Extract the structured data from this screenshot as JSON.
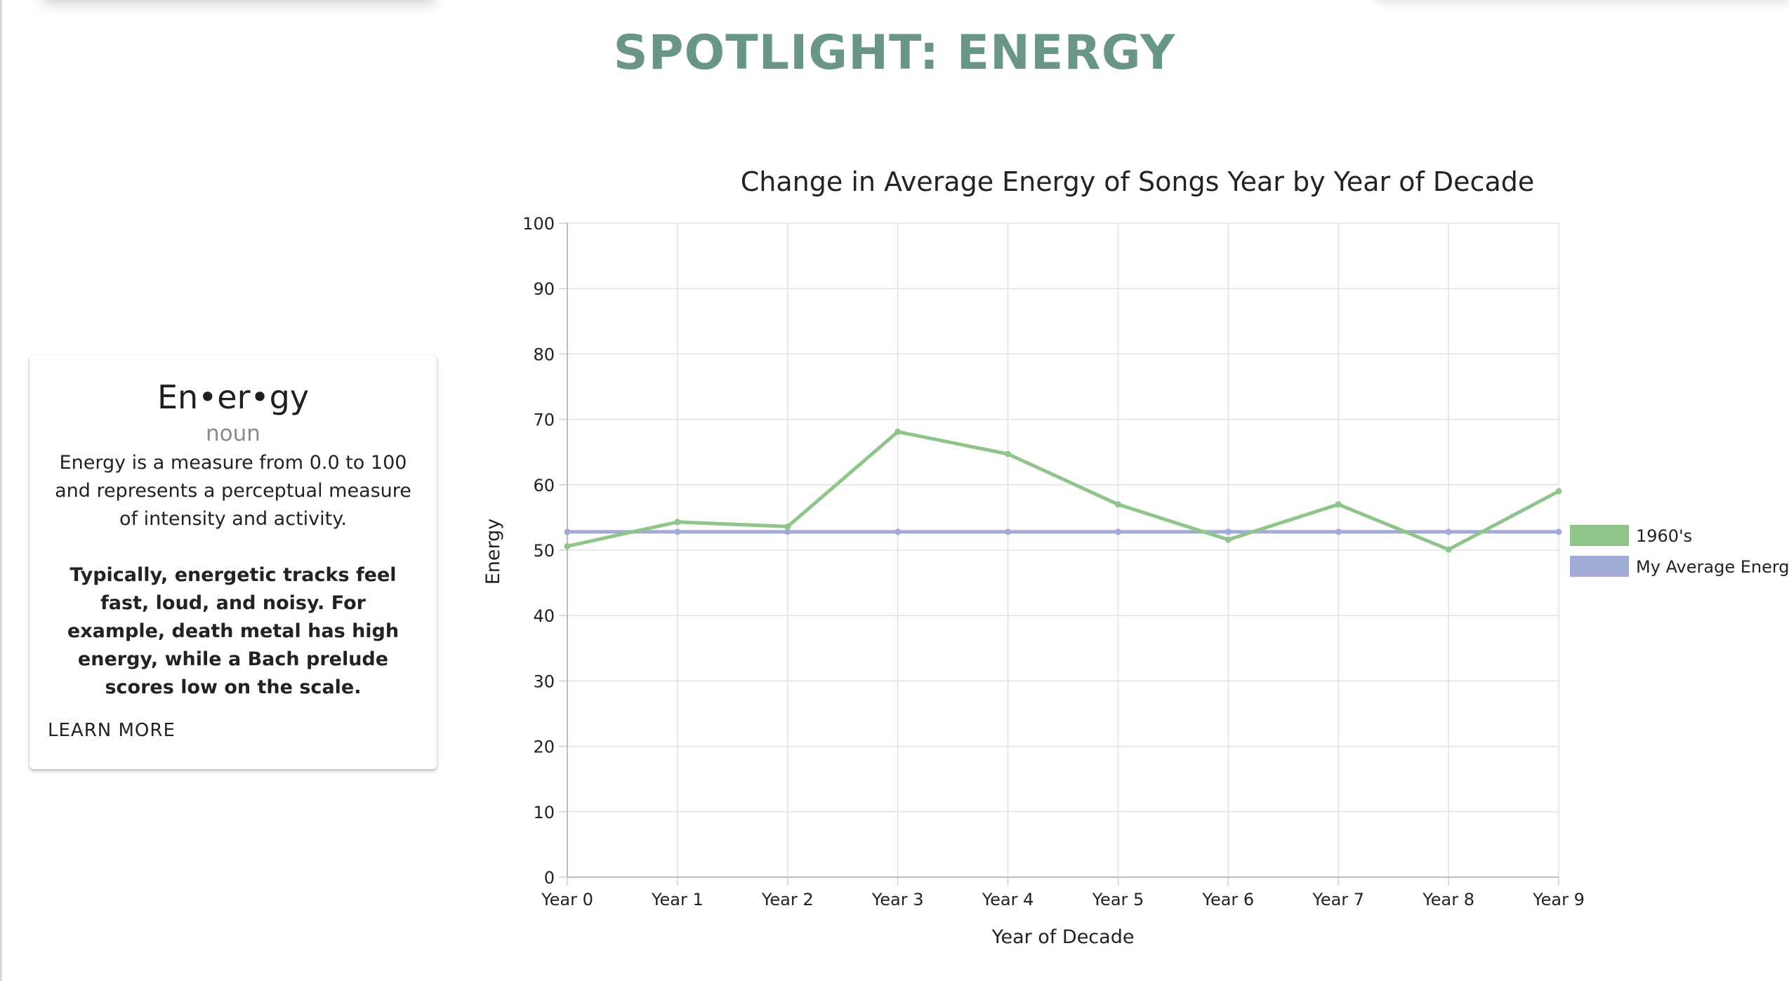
{
  "page": {
    "title": "SPOTLIGHT: ENERGY"
  },
  "definition": {
    "word": "En•er•gy",
    "part_of_speech": "noun",
    "definition": "Energy is a measure from 0.0 to 100 and represents a perceptual measure of intensity and activity.",
    "example": "Typically, energetic tracks feel fast, loud, and noisy. For example, death metal has high energy, while a Bach prelude scores low on the scale.",
    "learn_more": "LEARN MORE"
  },
  "chart_data": {
    "type": "line",
    "title": "Change in Average Energy of Songs Year by Year of Decade",
    "xlabel": "Year of Decade",
    "ylabel": "Energy",
    "categories": [
      "Year 0",
      "Year 1",
      "Year 2",
      "Year 3",
      "Year 4",
      "Year 5",
      "Year 6",
      "Year 7",
      "Year 8",
      "Year 9"
    ],
    "ylim": [
      0,
      100
    ],
    "yticks": [
      0,
      10,
      20,
      30,
      40,
      50,
      60,
      70,
      80,
      90,
      100
    ],
    "grid": true,
    "legend_position": "right",
    "series": [
      {
        "name": "1960's",
        "color": "#8fc48a",
        "values": [
          50.6,
          54.3,
          53.6,
          68.1,
          64.7,
          57.0,
          51.6,
          57.0,
          50.1,
          59.0
        ]
      },
      {
        "name": "My Average Energy",
        "color": "#a2aad6",
        "values": [
          52.8,
          52.8,
          52.8,
          52.8,
          52.8,
          52.8,
          52.8,
          52.8,
          52.8,
          52.8
        ]
      }
    ]
  }
}
